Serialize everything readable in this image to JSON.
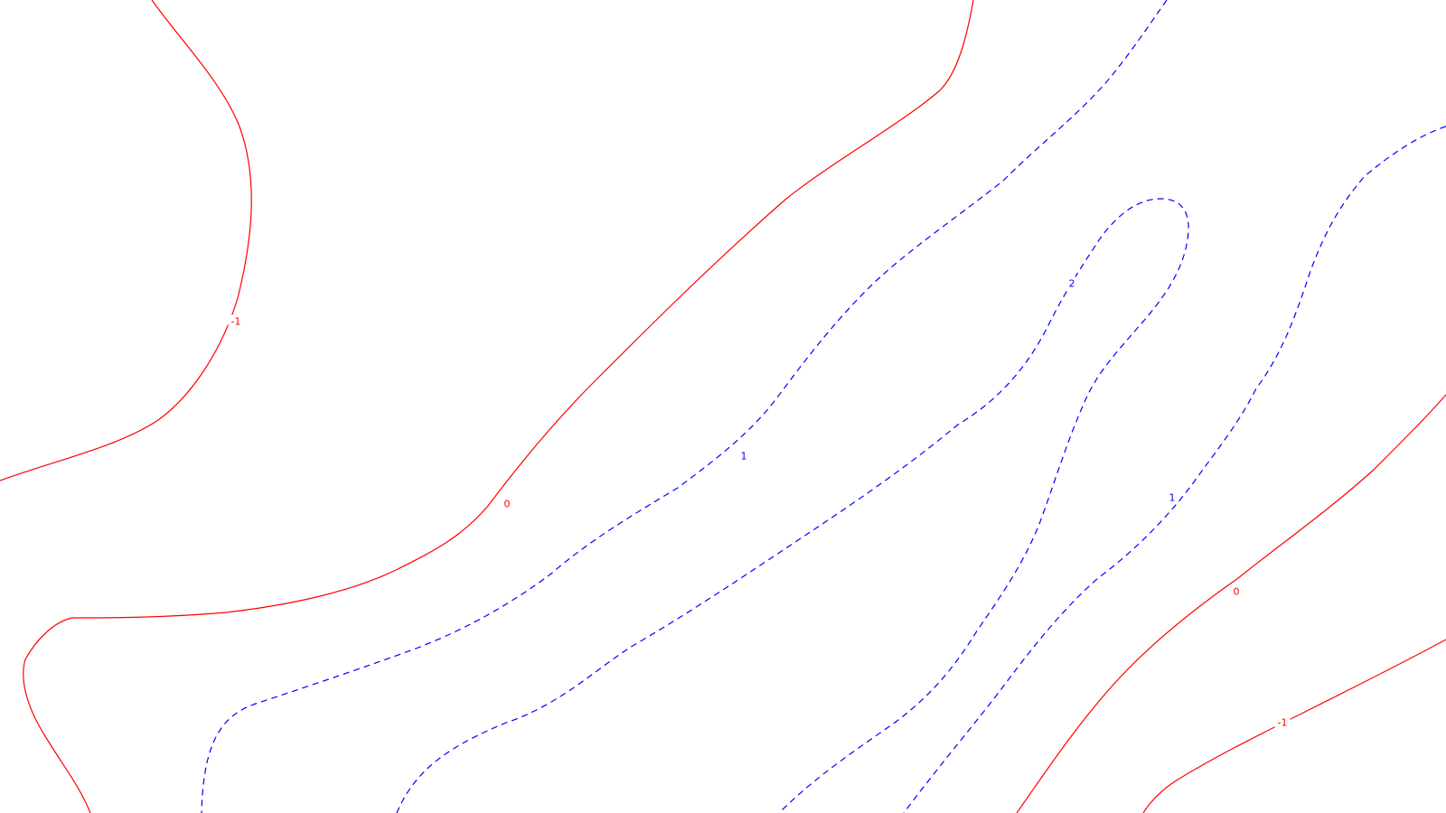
{
  "chart_data": {
    "type": "contour",
    "title": "",
    "xlabel": "",
    "ylabel": "",
    "grid": false,
    "legend": "none",
    "levels": [
      {
        "value": -1,
        "label": "-1",
        "color": "#ff0000",
        "style": "solid"
      },
      {
        "value": 0,
        "label": "0",
        "color": "#ff0000",
        "style": "solid"
      },
      {
        "value": 1,
        "label": "1",
        "color": "#0000ff",
        "style": "dashed"
      },
      {
        "value": 2,
        "label": "2",
        "color": "#0000ff",
        "style": "dashed"
      }
    ],
    "contour_labels": [
      "-1",
      "0",
      "1",
      "2",
      "1",
      "0",
      "-1"
    ]
  }
}
